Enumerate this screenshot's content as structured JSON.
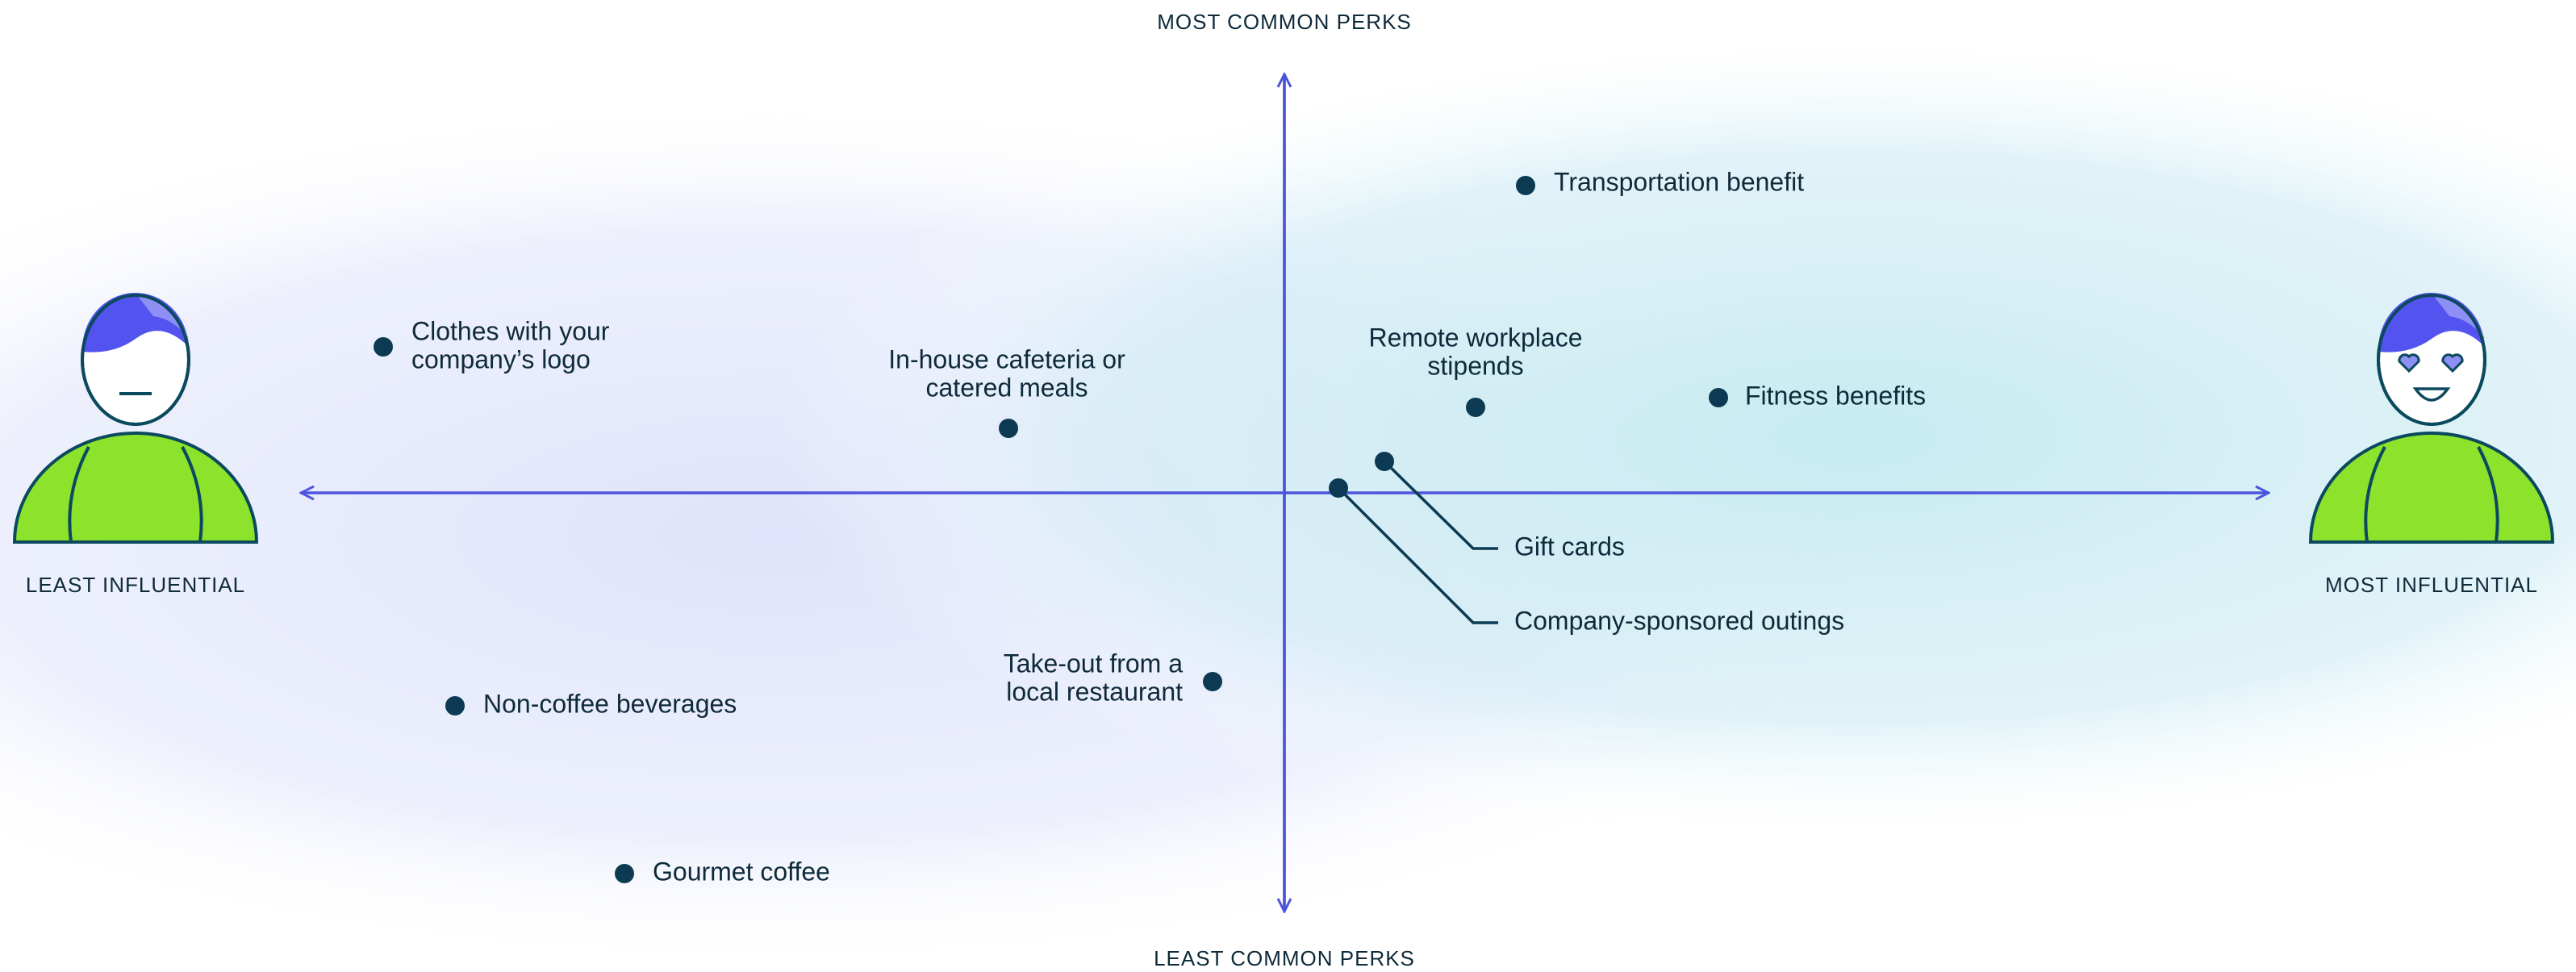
{
  "axes": {
    "top": "MOST COMMON PERKS",
    "bottom": "LEAST COMMON PERKS",
    "left": "LEAST INFLUENTIAL",
    "right": "MOST INFLUENTIAL"
  },
  "items": [
    {
      "lines": [
        "Transportation benefit"
      ]
    },
    {
      "lines": [
        "Clothes with your",
        "company’s logo"
      ]
    },
    {
      "lines": [
        "In-house cafeteria or",
        "catered meals"
      ]
    },
    {
      "lines": [
        "Remote workplace",
        "stipends"
      ]
    },
    {
      "lines": [
        "Fitness benefits"
      ]
    },
    {
      "lines": [
        "Gift cards"
      ]
    },
    {
      "lines": [
        "Company-sponsored outings"
      ]
    },
    {
      "lines": [
        "Take-out from a",
        "local restaurant"
      ]
    },
    {
      "lines": [
        "Non-coffee beverages"
      ]
    },
    {
      "lines": [
        "Gourmet coffee"
      ]
    }
  ]
}
